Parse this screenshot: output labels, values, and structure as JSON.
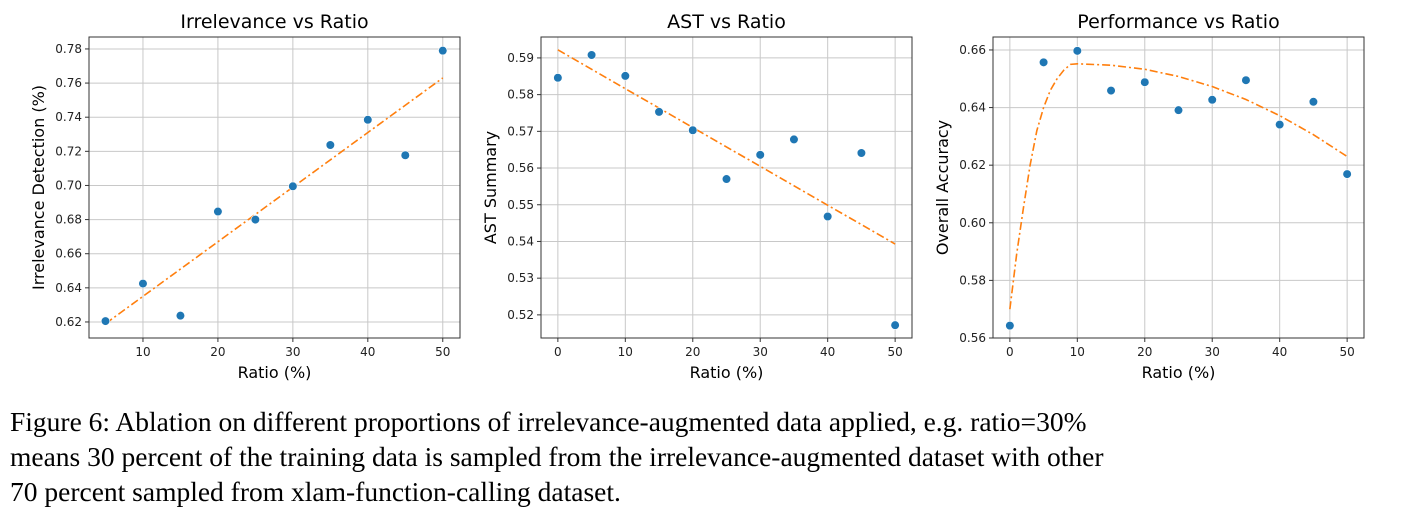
{
  "caption": {
    "line1": "Figure 6: Ablation on different proportions of irrelevance-augmented data applied, e.g. ratio=30%",
    "line2": "means 30 percent of the training data is sampled from the irrelevance-augmented dataset with other",
    "line3": "70 percent sampled from xlam-function-calling dataset."
  },
  "colors": {
    "points": "#1f77b4",
    "fit": "#ff7f0e",
    "grid": "#c8c8c8"
  },
  "chart_data": [
    {
      "type": "scatter",
      "title": "Irrelevance vs Ratio",
      "xlabel": "Ratio (%)",
      "ylabel": "Irrelevance Detection (%)",
      "xlim": [
        2.8,
        52.3
      ],
      "ylim": [
        0.6106,
        0.787
      ],
      "xticks": [
        10,
        20,
        30,
        40,
        50
      ],
      "yticks": [
        0.62,
        0.64,
        0.66,
        0.68,
        0.7,
        0.72,
        0.74,
        0.76,
        0.78
      ],
      "grid": true,
      "x": [
        5,
        10,
        15,
        20,
        25,
        30,
        35,
        40,
        45,
        50
      ],
      "y": [
        0.6205,
        0.6425,
        0.6237,
        0.6847,
        0.68,
        0.6995,
        0.7237,
        0.7385,
        0.7177,
        0.779
      ],
      "fit": {
        "style": "dash-dot",
        "x": [
          5,
          50
        ],
        "y": [
          0.619,
          0.763
        ]
      }
    },
    {
      "type": "scatter",
      "title": "AST vs Ratio",
      "xlabel": "Ratio (%)",
      "ylabel": "AST Summary",
      "xlim": [
        -2.5,
        52.5
      ],
      "ylim": [
        0.5137,
        0.5957
      ],
      "xticks": [
        0,
        10,
        20,
        30,
        40,
        50
      ],
      "yticks": [
        0.52,
        0.53,
        0.54,
        0.55,
        0.56,
        0.57,
        0.58,
        0.59
      ],
      "grid": true,
      "x": [
        0,
        5,
        10,
        15,
        20,
        25,
        30,
        35,
        40,
        45,
        50
      ],
      "y": [
        0.5846,
        0.5908,
        0.5851,
        0.5753,
        0.5703,
        0.557,
        0.5636,
        0.5678,
        0.5468,
        0.5641,
        0.5172
      ],
      "fit": {
        "style": "dash-dot",
        "x": [
          0,
          50
        ],
        "y": [
          0.5922,
          0.5393
        ]
      }
    },
    {
      "type": "scatter",
      "title": "Performance vs Ratio",
      "xlabel": "Ratio (%)",
      "ylabel": "Overall Accuracy",
      "xlim": [
        -2.5,
        52.5
      ],
      "ylim": [
        0.56,
        0.6645
      ],
      "xticks": [
        0,
        10,
        20,
        30,
        40,
        50
      ],
      "yticks": [
        0.56,
        0.58,
        0.6,
        0.62,
        0.64,
        0.66
      ],
      "grid": true,
      "x": [
        0,
        5,
        10,
        15,
        20,
        25,
        30,
        35,
        40,
        45,
        50
      ],
      "y": [
        0.5643,
        0.6557,
        0.6597,
        0.6459,
        0.6488,
        0.6391,
        0.6427,
        0.6495,
        0.6341,
        0.642,
        0.6169
      ],
      "fit": {
        "style": "dash-dot",
        "x": [
          0,
          1,
          2,
          3,
          4,
          5,
          6,
          7,
          8,
          9,
          10,
          15,
          20,
          25,
          30,
          35,
          40,
          45,
          50
        ],
        "y": [
          0.57,
          0.589,
          0.605,
          0.62,
          0.632,
          0.64,
          0.646,
          0.65,
          0.653,
          0.655,
          0.6552,
          0.6547,
          0.6533,
          0.6508,
          0.6473,
          0.6428,
          0.6372,
          0.6306,
          0.623
        ]
      }
    }
  ]
}
